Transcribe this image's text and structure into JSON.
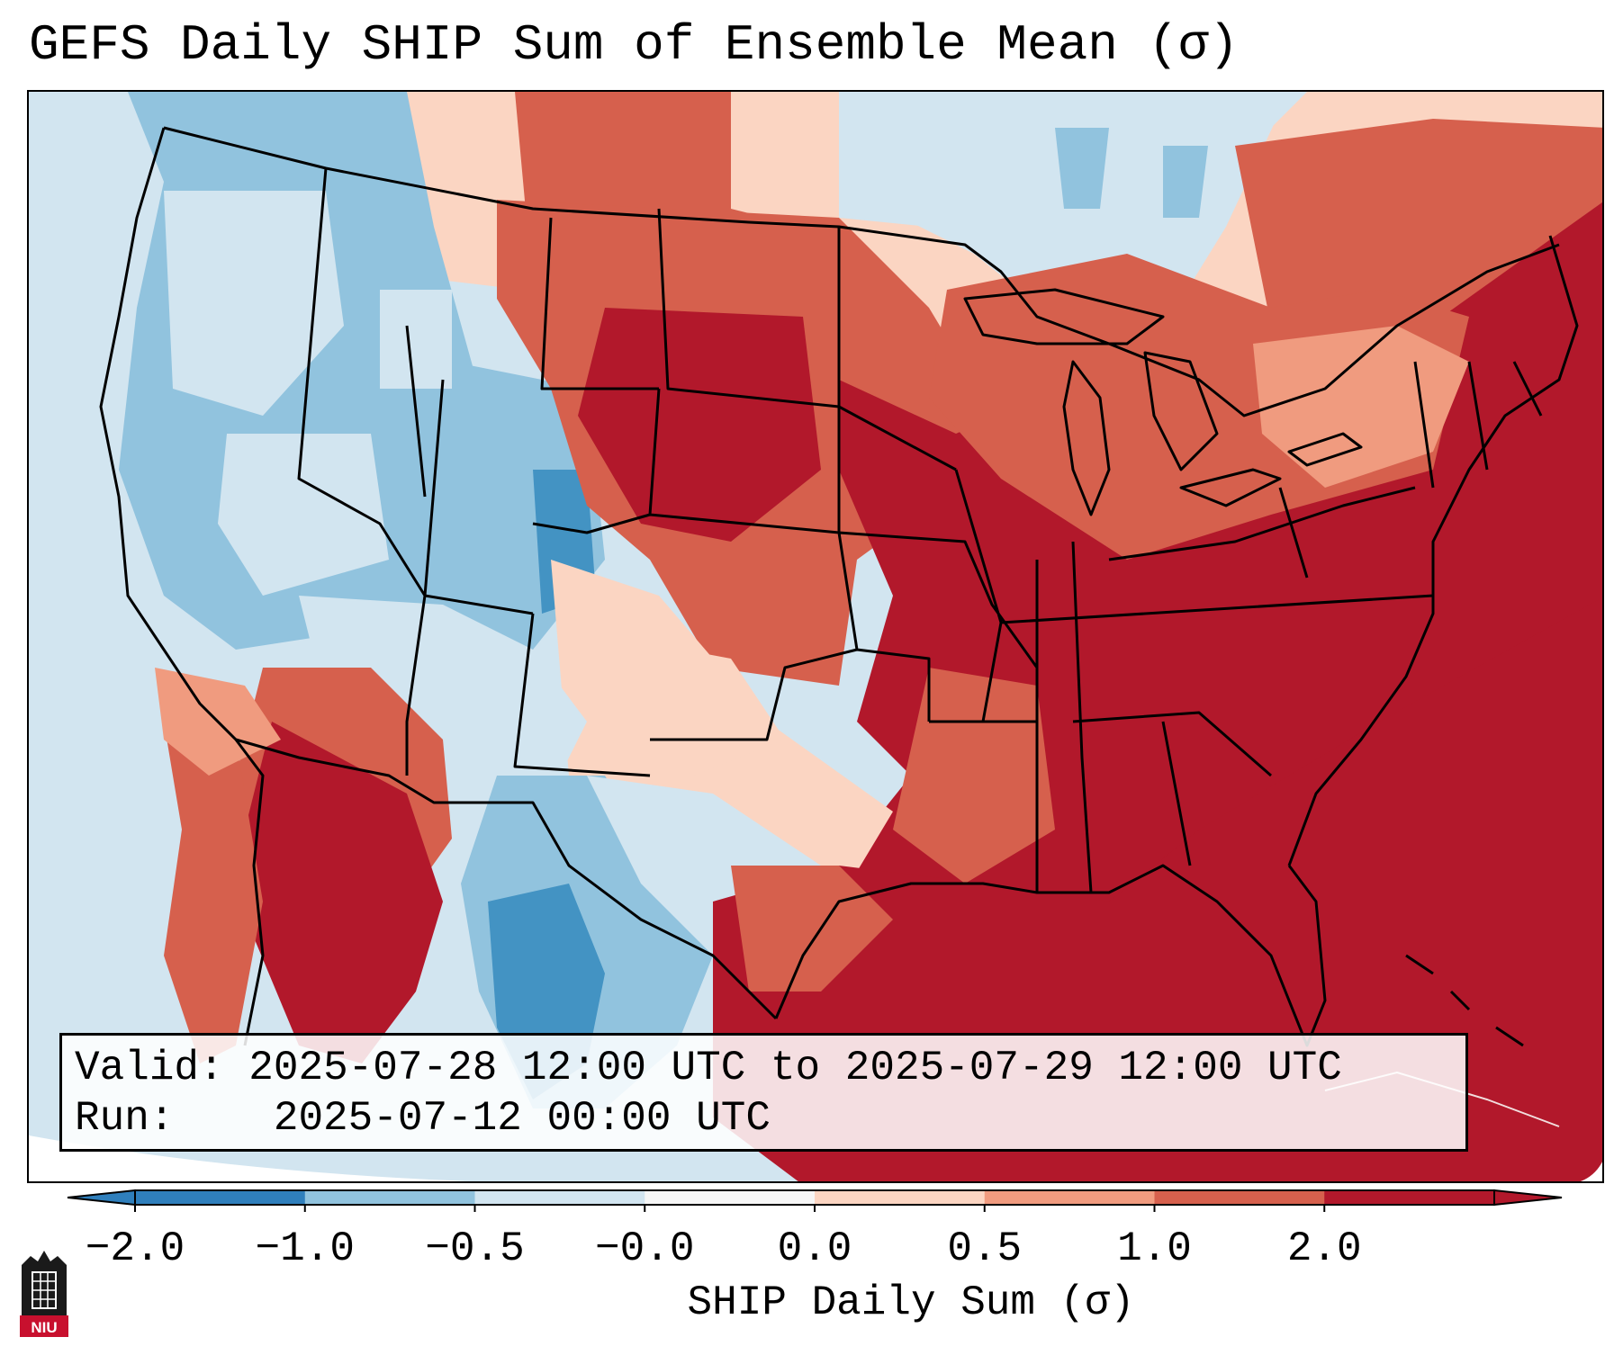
{
  "title": "GEFS Daily SHIP Sum of Ensemble Mean (σ)",
  "info": {
    "valid_label": "Valid:",
    "valid_value": "2025-07-28 12:00 UTC to 2025-07-29 12:00 UTC",
    "run_label": "Run:",
    "run_value": "2025-07-12 00:00 UTC"
  },
  "colorbar": {
    "title": "SHIP Daily Sum (σ)",
    "tick_labels": [
      "−2.0",
      "−1.0",
      "−0.5",
      "−0.0",
      "0.0",
      "0.5",
      "1.0",
      "2.0"
    ],
    "colors": [
      "#2f7fbc",
      "#91c3de",
      "#d2e5f0",
      "#f6f6f6",
      "#fbd5c2",
      "#f09b7f",
      "#d6604d",
      "#b2182b"
    ],
    "extend": "both"
  },
  "logo_text": "NIU",
  "map": {
    "region": "Continental United States",
    "ocean_color": "#d2e5f0",
    "outside_color": "#ffffff"
  }
}
